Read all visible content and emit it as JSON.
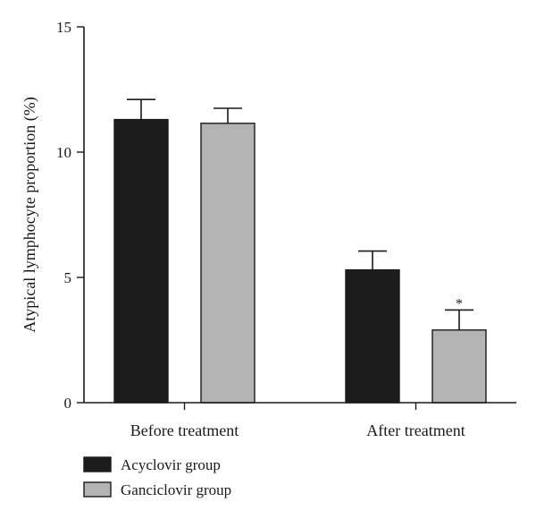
{
  "chart_data": {
    "type": "bar",
    "title": "",
    "xlabel": "",
    "ylabel": "Atypical lymphocyte proportion (%)",
    "ylim": [
      0,
      15
    ],
    "yticks": [
      0,
      5,
      10,
      15
    ],
    "categories": [
      "Before treatment",
      "After treatment"
    ],
    "series": [
      {
        "name": "Acyclovir group",
        "values": [
          11.3,
          5.3
        ],
        "errors": [
          0.8,
          0.75
        ],
        "color": "#1c1c1c"
      },
      {
        "name": "Ganciclovir group",
        "values": [
          11.15,
          2.9
        ],
        "errors": [
          0.6,
          0.8
        ],
        "color": "#b4b4b4"
      }
    ],
    "annotations": [
      {
        "category": 1,
        "series": 1,
        "text": "*"
      }
    ],
    "legend_position": "bottom-left",
    "grid": false
  }
}
